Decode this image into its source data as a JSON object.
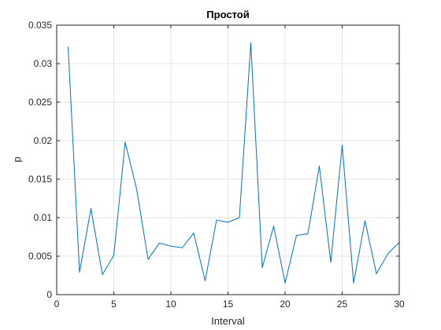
{
  "chart_data": {
    "type": "line",
    "title": "Простой",
    "xlabel": "Interval",
    "ylabel": "p",
    "xlim": [
      0,
      30
    ],
    "ylim": [
      0,
      0.035
    ],
    "xticks": [
      0,
      5,
      10,
      15,
      20,
      25,
      30
    ],
    "xtick_labels": [
      "0",
      "5",
      "10",
      "15",
      "20",
      "25",
      "30"
    ],
    "yticks": [
      0,
      0.005,
      0.01,
      0.015,
      0.02,
      0.025,
      0.03,
      0.035
    ],
    "ytick_labels": [
      "0",
      "0.005",
      "0.01",
      "0.015",
      "0.02",
      "0.025",
      "0.03",
      "0.035"
    ],
    "grid": true,
    "series": [
      {
        "color": "#0072BD",
        "x": [
          1,
          2,
          3,
          4,
          5,
          6,
          7,
          8,
          9,
          10,
          11,
          12,
          13,
          14,
          15,
          16,
          17,
          18,
          19,
          20,
          21,
          22,
          23,
          24,
          25,
          26,
          27,
          28,
          29,
          30
        ],
        "values": [
          0.0322,
          0.0029,
          0.0112,
          0.0026,
          0.0051,
          0.0198,
          0.0137,
          0.0046,
          0.0067,
          0.0063,
          0.0061,
          0.008,
          0.0018,
          0.0097,
          0.0094,
          0.01,
          0.0327,
          0.0035,
          0.0089,
          0.0015,
          0.0077,
          0.0079,
          0.0167,
          0.0042,
          0.0194,
          0.0015,
          0.0096,
          0.0027,
          0.0053,
          0.0068
        ]
      }
    ]
  }
}
